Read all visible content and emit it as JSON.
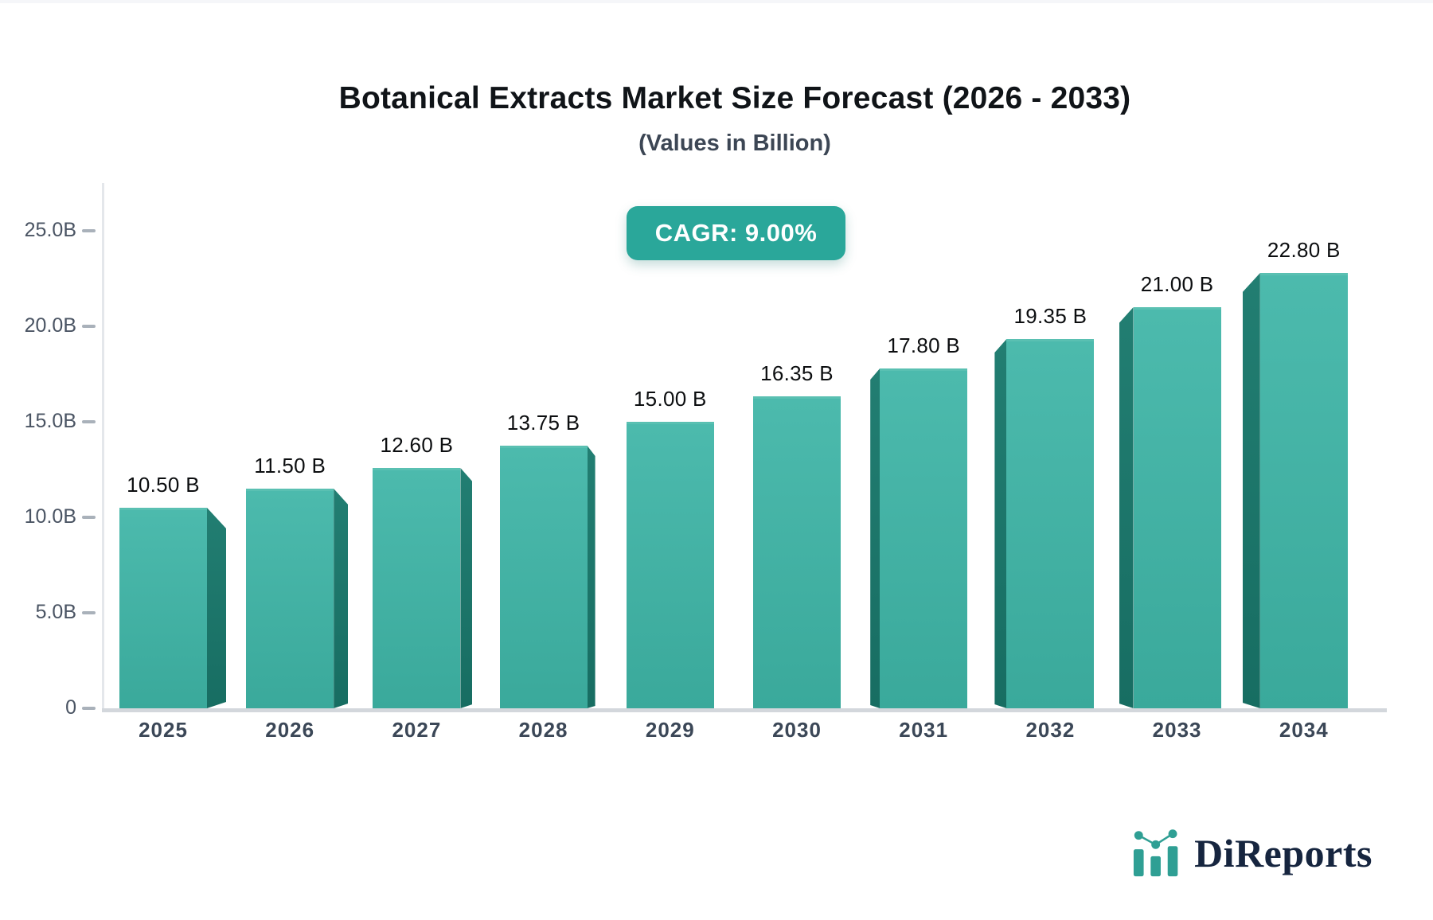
{
  "header": {
    "title": "Botanical Extracts Market Size Forecast (2026 - 2033)",
    "subtitle": "(Values in Billion)"
  },
  "badge": {
    "label": "CAGR: 9.00%",
    "color": "#2aa79a"
  },
  "chart_data": {
    "type": "bar",
    "title": "Botanical Extracts Market Size Forecast (2026 - 2033)",
    "subtitle": "(Values in Billion)",
    "cagr_label": "CAGR: 9.00%",
    "categories": [
      "2025",
      "2026",
      "2027",
      "2028",
      "2029",
      "2030",
      "2031",
      "2032",
      "2033",
      "2034"
    ],
    "values": [
      10.5,
      11.5,
      12.6,
      13.75,
      15.0,
      16.35,
      17.8,
      19.35,
      21.0,
      22.8
    ],
    "value_labels": [
      "10.50 B",
      "11.50 B",
      "12.60 B",
      "13.75 B",
      "15.00 B",
      "16.35 B",
      "17.80 B",
      "19.35 B",
      "21.00 B",
      "22.80 B"
    ],
    "xlabel": "",
    "ylabel": "",
    "ylim": [
      0,
      25
    ],
    "yticks": [
      {
        "label": "25.0B",
        "value": 25
      },
      {
        "label": "20.0B",
        "value": 20
      },
      {
        "label": "15.0B",
        "value": 15
      },
      {
        "label": "10.0B",
        "value": 10
      },
      {
        "label": "5.0B",
        "value": 5
      },
      {
        "label": "0",
        "value": 0
      }
    ],
    "grid": "off",
    "legend": "none",
    "bar_color_top": "#4cbaad",
    "bar_color_bottom": "#3aa99b",
    "bar_side_color": "#227e72",
    "style": "pseudo-3d bars, perspective vanishing toward center"
  },
  "logo": {
    "text": "DiReports",
    "icon": "mini-bar-chart-icon",
    "text_color": "#16253f",
    "accent_color": "#2f9f94"
  }
}
